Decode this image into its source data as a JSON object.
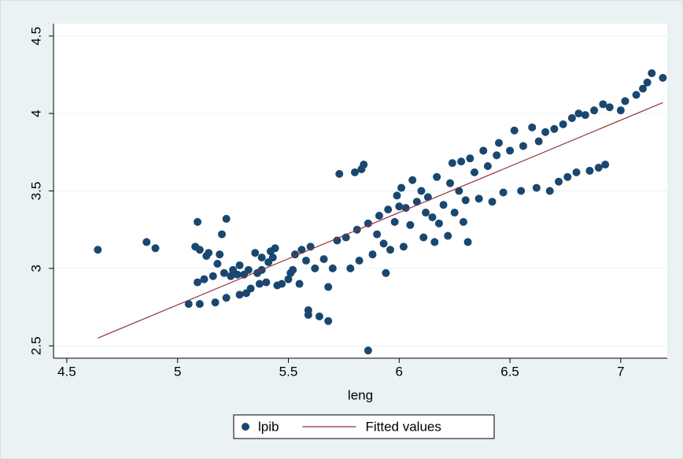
{
  "chart_data": {
    "type": "scatter",
    "x_label": "leng",
    "xlim": [
      4.44,
      7.21
    ],
    "ylim": [
      2.42,
      4.58
    ],
    "xticks": [
      4.5,
      5,
      5.5,
      6,
      6.5,
      7
    ],
    "yticks": [
      2.5,
      3,
      3.5,
      4,
      4.5
    ],
    "grid": true,
    "legend": "bottom",
    "series": [
      {
        "name": "lpib",
        "color": "#1a476f",
        "type": "scatter",
        "x": [
          4.64,
          4.86,
          4.9,
          5.05,
          5.08,
          5.09,
          5.09,
          5.1,
          5.1,
          5.12,
          5.13,
          5.14,
          5.16,
          5.17,
          5.18,
          5.19,
          5.2,
          5.21,
          5.22,
          5.22,
          5.24,
          5.25,
          5.27,
          5.28,
          5.28,
          5.3,
          5.31,
          5.32,
          5.33,
          5.35,
          5.36,
          5.37,
          5.38,
          5.38,
          5.4,
          5.41,
          5.42,
          5.43,
          5.44,
          5.45,
          5.47,
          5.5,
          5.51,
          5.52,
          5.53,
          5.55,
          5.56,
          5.58,
          5.59,
          5.59,
          5.6,
          5.62,
          5.64,
          5.66,
          5.68,
          5.68,
          5.7,
          5.72,
          5.73,
          5.76,
          5.78,
          5.8,
          5.81,
          5.82,
          5.83,
          5.84,
          5.86,
          5.86,
          5.88,
          5.9,
          5.91,
          5.93,
          5.94,
          5.95,
          5.96,
          5.98,
          5.99,
          6.0,
          6.01,
          6.02,
          6.03,
          6.05,
          6.06,
          6.08,
          6.1,
          6.11,
          6.12,
          6.13,
          6.15,
          6.16,
          6.17,
          6.18,
          6.2,
          6.22,
          6.23,
          6.24,
          6.25,
          6.27,
          6.28,
          6.29,
          6.3,
          6.31,
          6.32,
          6.34,
          6.36,
          6.38,
          6.4,
          6.42,
          6.44,
          6.45,
          6.47,
          6.5,
          6.52,
          6.55,
          6.56,
          6.6,
          6.62,
          6.63,
          6.66,
          6.68,
          6.7,
          6.72,
          6.74,
          6.76,
          6.78,
          6.8,
          6.81,
          6.84,
          6.86,
          6.88,
          6.9,
          6.92,
          6.93,
          6.95,
          7.0,
          7.02,
          7.07,
          7.1,
          7.12,
          7.14,
          7.19
        ],
        "values": [
          3.12,
          3.17,
          3.13,
          2.77,
          3.14,
          3.3,
          2.91,
          3.12,
          2.77,
          2.93,
          3.08,
          3.1,
          2.95,
          2.78,
          3.03,
          3.09,
          3.22,
          2.97,
          2.81,
          3.32,
          2.95,
          2.99,
          2.96,
          3.02,
          2.83,
          2.96,
          2.84,
          2.99,
          2.87,
          3.1,
          2.97,
          2.9,
          3.07,
          2.99,
          2.91,
          3.04,
          3.11,
          3.07,
          3.13,
          2.89,
          2.9,
          2.93,
          2.97,
          2.99,
          3.09,
          2.9,
          3.12,
          3.05,
          2.73,
          2.7,
          3.14,
          3.0,
          2.69,
          3.06,
          2.66,
          2.88,
          3.0,
          3.18,
          3.61,
          3.2,
          3.0,
          3.62,
          3.25,
          3.05,
          3.64,
          3.67,
          2.47,
          3.29,
          3.09,
          3.22,
          3.34,
          3.16,
          2.97,
          3.38,
          3.12,
          3.3,
          3.47,
          3.4,
          3.52,
          3.14,
          3.39,
          3.28,
          3.57,
          3.43,
          3.5,
          3.2,
          3.36,
          3.46,
          3.33,
          3.17,
          3.59,
          3.29,
          3.41,
          3.21,
          3.55,
          3.68,
          3.36,
          3.5,
          3.69,
          3.3,
          3.44,
          3.17,
          3.71,
          3.62,
          3.45,
          3.76,
          3.66,
          3.43,
          3.73,
          3.81,
          3.49,
          3.76,
          3.89,
          3.5,
          3.79,
          3.91,
          3.52,
          3.82,
          3.88,
          3.5,
          3.9,
          3.56,
          3.93,
          3.59,
          3.97,
          3.62,
          4.0,
          3.99,
          3.63,
          4.02,
          3.65,
          4.06,
          3.67,
          4.04,
          4.02,
          4.08,
          4.12,
          4.16,
          4.2,
          4.26,
          4.23
        ]
      },
      {
        "name": "Fitted values",
        "color": "#90353b",
        "type": "line",
        "x": [
          4.64,
          7.19
        ],
        "values": [
          2.55,
          4.07
        ]
      }
    ]
  }
}
